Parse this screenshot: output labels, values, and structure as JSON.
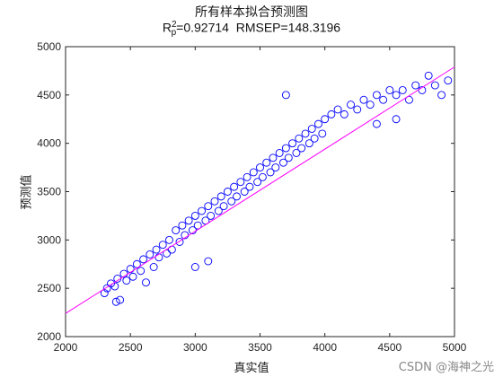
{
  "chart_data": {
    "type": "scatter",
    "title": "所有样本拟合预测图",
    "subtitle": {
      "r_base": "R",
      "r_sup": "2",
      "r_sub": "p",
      "r_value": "=0.92714",
      "rmsep": "RMSEP=148.3196"
    },
    "xlabel": "真实值",
    "ylabel": "预测值",
    "xlim": [
      2000,
      5000
    ],
    "ylim": [
      2000,
      5000
    ],
    "xticks": [
      2000,
      2500,
      3000,
      3500,
      4000,
      4500,
      5000
    ],
    "yticks": [
      2000,
      2500,
      3000,
      3500,
      4000,
      4500,
      5000
    ],
    "grid": false,
    "marker": "circle-open",
    "marker_color": "#0000ff",
    "fit_line": {
      "color": "#ff00ff",
      "slope": 0.85,
      "intercept": 540
    },
    "series": [
      {
        "points": [
          [
            2300,
            2450
          ],
          [
            2320,
            2500
          ],
          [
            2350,
            2550
          ],
          [
            2380,
            2520
          ],
          [
            2400,
            2600
          ],
          [
            2420,
            2380
          ],
          [
            2390,
            2360
          ],
          [
            2450,
            2650
          ],
          [
            2470,
            2580
          ],
          [
            2500,
            2700
          ],
          [
            2520,
            2620
          ],
          [
            2550,
            2750
          ],
          [
            2580,
            2680
          ],
          [
            2600,
            2800
          ],
          [
            2620,
            2560
          ],
          [
            2650,
            2850
          ],
          [
            2680,
            2720
          ],
          [
            2700,
            2900
          ],
          [
            2720,
            2820
          ],
          [
            2750,
            2950
          ],
          [
            2780,
            2860
          ],
          [
            2800,
            3000
          ],
          [
            2820,
            2900
          ],
          [
            2850,
            3100
          ],
          [
            2880,
            2980
          ],
          [
            2900,
            3150
          ],
          [
            2920,
            3050
          ],
          [
            2950,
            3200
          ],
          [
            2980,
            3100
          ],
          [
            3000,
            3250
          ],
          [
            3020,
            3150
          ],
          [
            3050,
            3300
          ],
          [
            3080,
            3200
          ],
          [
            3100,
            3350
          ],
          [
            3120,
            3250
          ],
          [
            3150,
            3400
          ],
          [
            3180,
            3300
          ],
          [
            3200,
            3450
          ],
          [
            3220,
            3350
          ],
          [
            3250,
            3500
          ],
          [
            3280,
            3400
          ],
          [
            3300,
            3550
          ],
          [
            3320,
            3450
          ],
          [
            3350,
            3600
          ],
          [
            3380,
            3500
          ],
          [
            3400,
            3650
          ],
          [
            3420,
            3550
          ],
          [
            3450,
            3700
          ],
          [
            3480,
            3600
          ],
          [
            3500,
            3750
          ],
          [
            3520,
            3650
          ],
          [
            3550,
            3800
          ],
          [
            3580,
            3700
          ],
          [
            3600,
            3850
          ],
          [
            3620,
            3750
          ],
          [
            3650,
            3900
          ],
          [
            3680,
            3800
          ],
          [
            3700,
            3950
          ],
          [
            3720,
            3850
          ],
          [
            3750,
            4000
          ],
          [
            3780,
            3900
          ],
          [
            3800,
            4050
          ],
          [
            3820,
            3950
          ],
          [
            3850,
            4100
          ],
          [
            3880,
            4000
          ],
          [
            3900,
            4150
          ],
          [
            3920,
            4050
          ],
          [
            3950,
            4200
          ],
          [
            3980,
            4100
          ],
          [
            4000,
            4250
          ],
          [
            4050,
            4300
          ],
          [
            4100,
            4350
          ],
          [
            4150,
            4300
          ],
          [
            4200,
            4400
          ],
          [
            4250,
            4350
          ],
          [
            4300,
            4450
          ],
          [
            4350,
            4400
          ],
          [
            4400,
            4500
          ],
          [
            4450,
            4450
          ],
          [
            4500,
            4550
          ],
          [
            4550,
            4500
          ],
          [
            4600,
            4550
          ],
          [
            4650,
            4450
          ],
          [
            4700,
            4600
          ],
          [
            4750,
            4550
          ],
          [
            4800,
            4700
          ],
          [
            4850,
            4600
          ],
          [
            4900,
            4500
          ],
          [
            4950,
            4650
          ],
          [
            3000,
            2720
          ],
          [
            3100,
            2780
          ],
          [
            3700,
            4500
          ],
          [
            4400,
            4200
          ],
          [
            4550,
            4250
          ]
        ]
      }
    ]
  },
  "watermark": "CSDN @海神之光"
}
